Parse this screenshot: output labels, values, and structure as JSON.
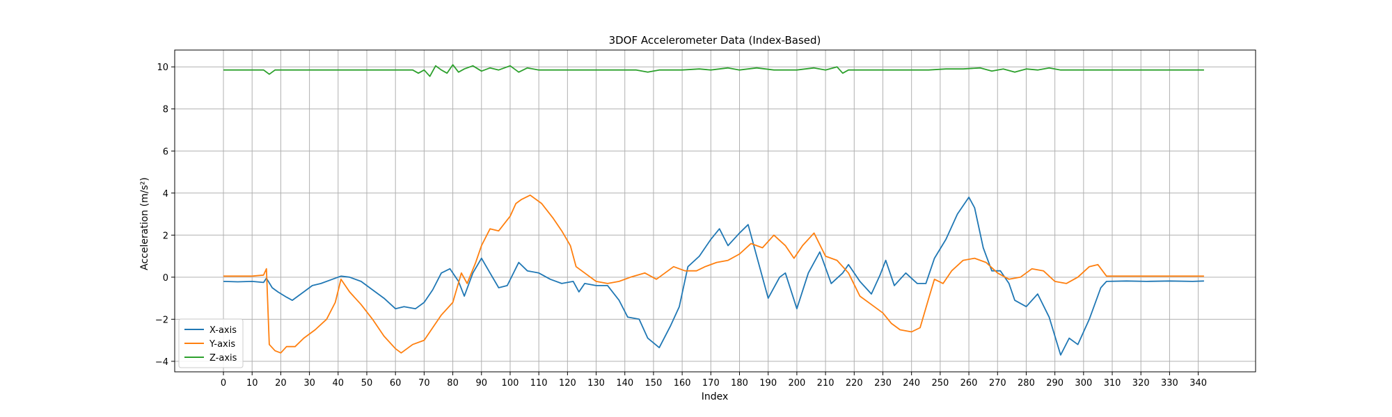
{
  "chart_data": {
    "type": "line",
    "title": "3DOF Accelerometer Data (Index-Based)",
    "xlabel": "Index",
    "ylabel": "Acceleration (m/s²)",
    "xlim": [
      -17,
      360
    ],
    "ylim": [
      -4.5,
      10.8
    ],
    "grid": true,
    "legend_position": "lower-left",
    "xticks": [
      0,
      10,
      20,
      30,
      40,
      50,
      60,
      70,
      80,
      90,
      100,
      110,
      120,
      130,
      140,
      150,
      160,
      170,
      180,
      190,
      200,
      210,
      220,
      230,
      240,
      250,
      260,
      270,
      280,
      290,
      300,
      310,
      320,
      330,
      340
    ],
    "yticks": [
      -4,
      -2,
      0,
      2,
      4,
      6,
      8,
      10
    ],
    "series": [
      {
        "name": "X-axis",
        "color": "#1f77b4",
        "points": [
          [
            0,
            -0.2
          ],
          [
            5,
            -0.22
          ],
          [
            10,
            -0.2
          ],
          [
            14,
            -0.25
          ],
          [
            15,
            -0.05
          ],
          [
            17,
            -0.5
          ],
          [
            19,
            -0.7
          ],
          [
            22,
            -0.95
          ],
          [
            24,
            -1.1
          ],
          [
            28,
            -0.7
          ],
          [
            31,
            -0.4
          ],
          [
            34,
            -0.3
          ],
          [
            38,
            -0.1
          ],
          [
            41,
            0.05
          ],
          [
            44,
            0.0
          ],
          [
            48,
            -0.2
          ],
          [
            52,
            -0.6
          ],
          [
            56,
            -1.0
          ],
          [
            60,
            -1.5
          ],
          [
            63,
            -1.4
          ],
          [
            67,
            -1.5
          ],
          [
            70,
            -1.2
          ],
          [
            73,
            -0.6
          ],
          [
            76,
            0.2
          ],
          [
            79,
            0.4
          ],
          [
            82,
            -0.2
          ],
          [
            84,
            -0.9
          ],
          [
            87,
            0.2
          ],
          [
            90,
            0.9
          ],
          [
            93,
            0.2
          ],
          [
            96,
            -0.5
          ],
          [
            99,
            -0.4
          ],
          [
            103,
            0.7
          ],
          [
            106,
            0.3
          ],
          [
            110,
            0.2
          ],
          [
            114,
            -0.1
          ],
          [
            118,
            -0.3
          ],
          [
            122,
            -0.2
          ],
          [
            124,
            -0.7
          ],
          [
            126,
            -0.3
          ],
          [
            130,
            -0.4
          ],
          [
            134,
            -0.4
          ],
          [
            138,
            -1.1
          ],
          [
            141,
            -1.9
          ],
          [
            145,
            -2.0
          ],
          [
            148,
            -2.9
          ],
          [
            152,
            -3.35
          ],
          [
            156,
            -2.3
          ],
          [
            159,
            -1.4
          ],
          [
            162,
            0.5
          ],
          [
            166,
            1.0
          ],
          [
            170,
            1.8
          ],
          [
            173,
            2.3
          ],
          [
            176,
            1.5
          ],
          [
            180,
            2.1
          ],
          [
            183,
            2.5
          ],
          [
            186,
            1.0
          ],
          [
            190,
            -1.0
          ],
          [
            194,
            0.0
          ],
          [
            196,
            0.2
          ],
          [
            200,
            -1.5
          ],
          [
            204,
            0.2
          ],
          [
            208,
            1.2
          ],
          [
            212,
            -0.3
          ],
          [
            216,
            0.2
          ],
          [
            218,
            0.6
          ],
          [
            222,
            -0.2
          ],
          [
            226,
            -0.8
          ],
          [
            229,
            0.1
          ],
          [
            231,
            0.8
          ],
          [
            234,
            -0.4
          ],
          [
            238,
            0.2
          ],
          [
            242,
            -0.3
          ],
          [
            245,
            -0.3
          ],
          [
            248,
            0.9
          ],
          [
            252,
            1.8
          ],
          [
            256,
            3.0
          ],
          [
            260,
            3.8
          ],
          [
            262,
            3.3
          ],
          [
            265,
            1.4
          ],
          [
            268,
            0.3
          ],
          [
            271,
            0.3
          ],
          [
            274,
            -0.3
          ],
          [
            276,
            -1.1
          ],
          [
            280,
            -1.4
          ],
          [
            284,
            -0.8
          ],
          [
            288,
            -1.9
          ],
          [
            292,
            -3.7
          ],
          [
            295,
            -2.9
          ],
          [
            298,
            -3.2
          ],
          [
            302,
            -2.0
          ],
          [
            306,
            -0.5
          ],
          [
            308,
            -0.2
          ],
          [
            315,
            -0.18
          ],
          [
            322,
            -0.2
          ],
          [
            330,
            -0.18
          ],
          [
            338,
            -0.2
          ],
          [
            342,
            -0.18
          ]
        ]
      },
      {
        "name": "Y-axis",
        "color": "#ff7f0e",
        "points": [
          [
            0,
            0.05
          ],
          [
            10,
            0.05
          ],
          [
            14,
            0.1
          ],
          [
            15,
            0.4
          ],
          [
            16,
            -3.2
          ],
          [
            18,
            -3.5
          ],
          [
            20,
            -3.6
          ],
          [
            22,
            -3.3
          ],
          [
            25,
            -3.3
          ],
          [
            28,
            -2.9
          ],
          [
            32,
            -2.5
          ],
          [
            36,
            -2.0
          ],
          [
            39,
            -1.2
          ],
          [
            41,
            -0.1
          ],
          [
            44,
            -0.7
          ],
          [
            48,
            -1.3
          ],
          [
            52,
            -2.0
          ],
          [
            56,
            -2.8
          ],
          [
            60,
            -3.4
          ],
          [
            62,
            -3.6
          ],
          [
            66,
            -3.2
          ],
          [
            70,
            -3.0
          ],
          [
            73,
            -2.4
          ],
          [
            76,
            -1.8
          ],
          [
            80,
            -1.2
          ],
          [
            83,
            0.2
          ],
          [
            85,
            -0.3
          ],
          [
            88,
            0.7
          ],
          [
            90,
            1.5
          ],
          [
            93,
            2.3
          ],
          [
            96,
            2.2
          ],
          [
            100,
            2.9
          ],
          [
            102,
            3.5
          ],
          [
            104,
            3.7
          ],
          [
            107,
            3.9
          ],
          [
            111,
            3.5
          ],
          [
            115,
            2.8
          ],
          [
            118,
            2.2
          ],
          [
            121,
            1.5
          ],
          [
            123,
            0.5
          ],
          [
            126,
            0.2
          ],
          [
            130,
            -0.2
          ],
          [
            134,
            -0.3
          ],
          [
            138,
            -0.2
          ],
          [
            142,
            0.0
          ],
          [
            147,
            0.2
          ],
          [
            151,
            -0.1
          ],
          [
            154,
            0.2
          ],
          [
            157,
            0.5
          ],
          [
            161,
            0.3
          ],
          [
            165,
            0.3
          ],
          [
            168,
            0.5
          ],
          [
            172,
            0.7
          ],
          [
            176,
            0.8
          ],
          [
            180,
            1.1
          ],
          [
            184,
            1.6
          ],
          [
            188,
            1.4
          ],
          [
            192,
            2.0
          ],
          [
            196,
            1.5
          ],
          [
            199,
            0.9
          ],
          [
            202,
            1.5
          ],
          [
            206,
            2.1
          ],
          [
            210,
            1.0
          ],
          [
            214,
            0.8
          ],
          [
            218,
            0.2
          ],
          [
            222,
            -0.9
          ],
          [
            226,
            -1.3
          ],
          [
            230,
            -1.7
          ],
          [
            233,
            -2.2
          ],
          [
            236,
            -2.5
          ],
          [
            240,
            -2.6
          ],
          [
            243,
            -2.4
          ],
          [
            246,
            -1.0
          ],
          [
            248,
            -0.1
          ],
          [
            251,
            -0.3
          ],
          [
            254,
            0.3
          ],
          [
            258,
            0.8
          ],
          [
            262,
            0.9
          ],
          [
            266,
            0.7
          ],
          [
            270,
            0.2
          ],
          [
            274,
            -0.1
          ],
          [
            278,
            0.0
          ],
          [
            282,
            0.4
          ],
          [
            286,
            0.3
          ],
          [
            290,
            -0.2
          ],
          [
            294,
            -0.3
          ],
          [
            298,
            0.0
          ],
          [
            302,
            0.5
          ],
          [
            305,
            0.6
          ],
          [
            308,
            0.05
          ],
          [
            315,
            0.05
          ],
          [
            325,
            0.05
          ],
          [
            335,
            0.05
          ],
          [
            342,
            0.05
          ]
        ]
      },
      {
        "name": "Z-axis",
        "color": "#2ca02c",
        "points": [
          [
            0,
            9.85
          ],
          [
            5,
            9.85
          ],
          [
            10,
            9.85
          ],
          [
            14,
            9.85
          ],
          [
            16,
            9.65
          ],
          [
            18,
            9.85
          ],
          [
            22,
            9.85
          ],
          [
            30,
            9.85
          ],
          [
            40,
            9.85
          ],
          [
            50,
            9.85
          ],
          [
            60,
            9.85
          ],
          [
            66,
            9.85
          ],
          [
            68,
            9.7
          ],
          [
            70,
            9.85
          ],
          [
            72,
            9.55
          ],
          [
            74,
            10.05
          ],
          [
            76,
            9.85
          ],
          [
            78,
            9.7
          ],
          [
            80,
            10.1
          ],
          [
            82,
            9.75
          ],
          [
            84,
            9.9
          ],
          [
            87,
            10.05
          ],
          [
            90,
            9.8
          ],
          [
            93,
            9.95
          ],
          [
            96,
            9.85
          ],
          [
            100,
            10.05
          ],
          [
            103,
            9.75
          ],
          [
            106,
            9.95
          ],
          [
            110,
            9.85
          ],
          [
            116,
            9.85
          ],
          [
            124,
            9.85
          ],
          [
            134,
            9.85
          ],
          [
            144,
            9.85
          ],
          [
            148,
            9.75
          ],
          [
            152,
            9.85
          ],
          [
            160,
            9.85
          ],
          [
            166,
            9.9
          ],
          [
            170,
            9.85
          ],
          [
            176,
            9.95
          ],
          [
            180,
            9.85
          ],
          [
            186,
            9.95
          ],
          [
            192,
            9.85
          ],
          [
            200,
            9.85
          ],
          [
            206,
            9.95
          ],
          [
            210,
            9.85
          ],
          [
            214,
            10.0
          ],
          [
            216,
            9.7
          ],
          [
            218,
            9.85
          ],
          [
            224,
            9.85
          ],
          [
            232,
            9.85
          ],
          [
            240,
            9.85
          ],
          [
            246,
            9.85
          ],
          [
            252,
            9.9
          ],
          [
            258,
            9.9
          ],
          [
            264,
            9.95
          ],
          [
            268,
            9.8
          ],
          [
            272,
            9.9
          ],
          [
            276,
            9.75
          ],
          [
            280,
            9.9
          ],
          [
            284,
            9.85
          ],
          [
            288,
            9.95
          ],
          [
            292,
            9.85
          ],
          [
            298,
            9.85
          ],
          [
            306,
            9.85
          ],
          [
            316,
            9.85
          ],
          [
            326,
            9.85
          ],
          [
            336,
            9.85
          ],
          [
            342,
            9.85
          ]
        ]
      }
    ]
  }
}
